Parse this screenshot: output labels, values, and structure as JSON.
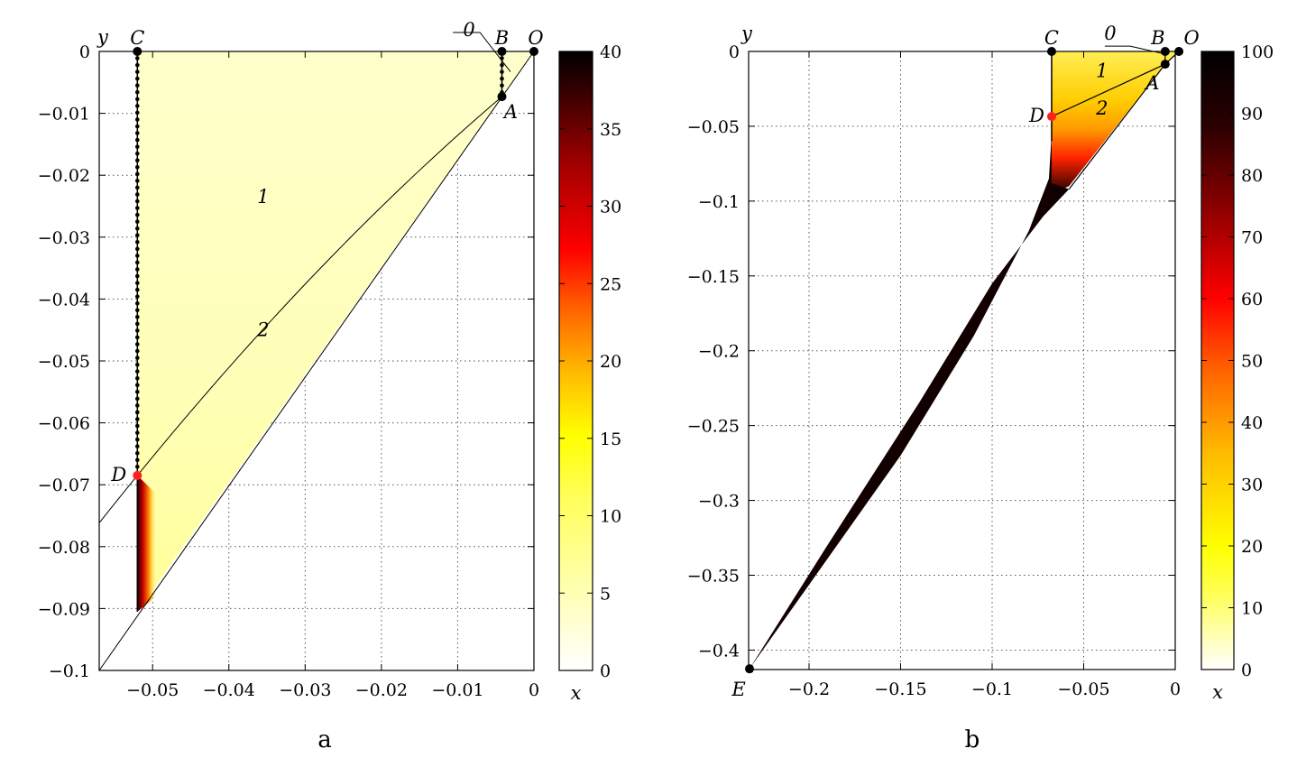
{
  "chart_data": [
    {
      "panel_label": "a",
      "type": "heatmap",
      "title": "",
      "xlabel": "",
      "ylabel": "y",
      "xlim": [
        -0.057,
        0
      ],
      "ylim": [
        -0.1,
        0
      ],
      "xticks": [
        {
          "v": -0.05,
          "label": "−0.05"
        },
        {
          "v": -0.04,
          "label": "−0.04"
        },
        {
          "v": -0.03,
          "label": "−0.03"
        },
        {
          "v": -0.02,
          "label": "−0.02"
        },
        {
          "v": -0.01,
          "label": "−0.01"
        },
        {
          "v": 0,
          "label": "0"
        }
      ],
      "yticks": [
        {
          "v": 0,
          "label": "0"
        },
        {
          "v": -0.01,
          "label": "−0.01"
        },
        {
          "v": -0.02,
          "label": "−0.02"
        },
        {
          "v": -0.03,
          "label": "−0.03"
        },
        {
          "v": -0.04,
          "label": "−0.04"
        },
        {
          "v": -0.05,
          "label": "−0.05"
        },
        {
          "v": -0.06,
          "label": "−0.06"
        },
        {
          "v": -0.07,
          "label": "−0.07"
        },
        {
          "v": -0.08,
          "label": "−0.08"
        },
        {
          "v": -0.09,
          "label": "−0.09"
        },
        {
          "v": -0.1,
          "label": "−0.1"
        }
      ],
      "grid": true,
      "colorbar": {
        "label": "x",
        "range": [
          0,
          40
        ],
        "ticks": [
          {
            "v": 0,
            "label": "0"
          },
          {
            "v": 5,
            "label": "5"
          },
          {
            "v": 10,
            "label": "10"
          },
          {
            "v": 15,
            "label": "15"
          },
          {
            "v": 20,
            "label": "20"
          },
          {
            "v": 25,
            "label": "25"
          },
          {
            "v": 30,
            "label": "30"
          },
          {
            "v": 35,
            "label": "35"
          },
          {
            "v": 40,
            "label": "40"
          }
        ]
      },
      "points": [
        {
          "label": "C",
          "x": -0.052,
          "y": 0,
          "color": "#000000"
        },
        {
          "label": "B",
          "x": -0.0042,
          "y": 0,
          "color": "#000000"
        },
        {
          "label": "O",
          "x": 0,
          "y": 0,
          "color": "#000000"
        },
        {
          "label": "A",
          "x": -0.0042,
          "y": -0.0073,
          "color": "#000000"
        },
        {
          "label": "D",
          "x": -0.052,
          "y": -0.0685,
          "color": "#ff2020"
        }
      ],
      "annotations": [
        {
          "text": "1",
          "x": -0.0355,
          "y": -0.0235
        },
        {
          "text": "2",
          "x": -0.0355,
          "y": -0.045
        },
        {
          "text": "0",
          "x": -0.0085,
          "y": 0.0035
        }
      ]
    },
    {
      "panel_label": "b",
      "type": "heatmap",
      "title": "",
      "xlabel": "",
      "ylabel": "y",
      "xlim": [
        -0.233,
        0
      ],
      "ylim": [
        -0.413,
        0
      ],
      "xticks": [
        {
          "v": -0.2,
          "label": "−0.2"
        },
        {
          "v": -0.15,
          "label": "−0.15"
        },
        {
          "v": -0.1,
          "label": "−0.1"
        },
        {
          "v": -0.05,
          "label": "−0.05"
        },
        {
          "v": 0,
          "label": "0"
        }
      ],
      "yticks": [
        {
          "v": 0,
          "label": "0"
        },
        {
          "v": -0.05,
          "label": "−0.05"
        },
        {
          "v": -0.1,
          "label": "−0.1"
        },
        {
          "v": -0.15,
          "label": "−0.15"
        },
        {
          "v": -0.2,
          "label": "−0.2"
        },
        {
          "v": -0.25,
          "label": "−0.25"
        },
        {
          "v": -0.3,
          "label": "−0.3"
        },
        {
          "v": -0.35,
          "label": "−0.35"
        },
        {
          "v": -0.4,
          "label": "−0.4"
        }
      ],
      "grid": true,
      "colorbar": {
        "label": "x",
        "range": [
          0,
          100
        ],
        "ticks": [
          {
            "v": 0,
            "label": "0"
          },
          {
            "v": 10,
            "label": "10"
          },
          {
            "v": 20,
            "label": "20"
          },
          {
            "v": 30,
            "label": "30"
          },
          {
            "v": 40,
            "label": "40"
          },
          {
            "v": 50,
            "label": "50"
          },
          {
            "v": 60,
            "label": "60"
          },
          {
            "v": 70,
            "label": "70"
          },
          {
            "v": 80,
            "label": "80"
          },
          {
            "v": 90,
            "label": "90"
          },
          {
            "v": 100,
            "label": "100"
          }
        ]
      },
      "points": [
        {
          "label": "C",
          "x": -0.0675,
          "y": 0,
          "color": "#000000"
        },
        {
          "label": "B",
          "x": -0.0055,
          "y": 0,
          "color": "#000000"
        },
        {
          "label": "O",
          "x": 0.002,
          "y": 0,
          "color": "#000000"
        },
        {
          "label": "A",
          "x": -0.0055,
          "y": -0.0085,
          "color": "#000000"
        },
        {
          "label": "D",
          "x": -0.0675,
          "y": -0.0435,
          "color": "#ff2020"
        },
        {
          "label": "E",
          "x": -0.2325,
          "y": -0.4125,
          "color": "#000000"
        }
      ],
      "annotations": [
        {
          "text": "1",
          "x": -0.04,
          "y": -0.013
        },
        {
          "text": "2",
          "x": -0.04,
          "y": -0.038
        },
        {
          "text": "0",
          "x": -0.0355,
          "y": 0.012
        }
      ]
    }
  ]
}
